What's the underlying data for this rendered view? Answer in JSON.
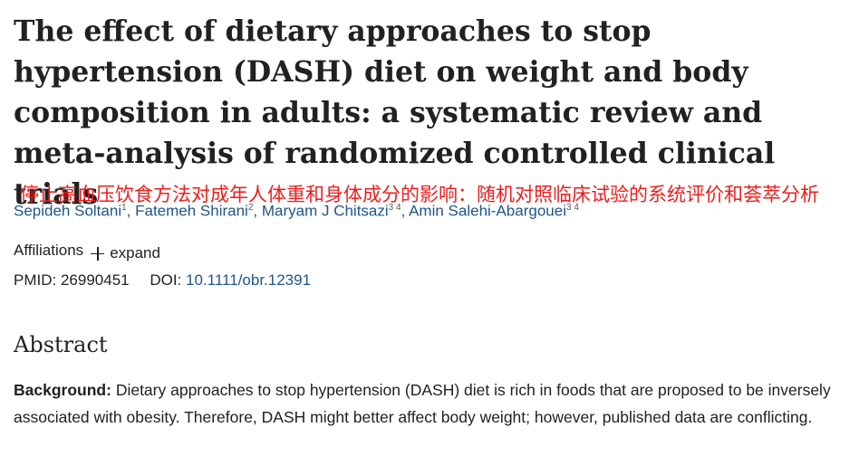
{
  "article": {
    "title": "The effect of dietary approaches to stop hypertension (DASH) diet on weight and body composition in adults: a systematic review and meta-analysis of randomized controlled clinical trials",
    "authors": [
      {
        "name": "Sepideh Soltani",
        "sup": "1"
      },
      {
        "name": "Fatemeh Shirani",
        "sup": "2"
      },
      {
        "name": "Maryam J Chitsazi",
        "sup": "3 4"
      },
      {
        "name": "Amin Salehi-Abargouei",
        "sup": "3 4"
      }
    ],
    "translation_overlay": "停止高血压饮食方法对成年人体重和身体成分的影响：随机对照临床试验的系统评价和荟萃分析",
    "affiliations_label": "Affiliations",
    "expand_label": "expand",
    "pmid_label": "PMID:",
    "pmid": "26990451",
    "doi_label": "DOI:",
    "doi": "10.1111/obr.12391",
    "abstract_heading": "Abstract",
    "background_label": "Background:",
    "background_text": "Dietary approaches to stop hypertension (DASH) diet is rich in foods that are proposed to be inversely associated with obesity. Therefore, DASH might better affect body weight; however, published data are conflicting."
  },
  "colors": {
    "text": "#212121",
    "link": "#20558a",
    "overlay": "#ee1c1c"
  },
  "icons": {
    "expand": "plus-icon"
  }
}
